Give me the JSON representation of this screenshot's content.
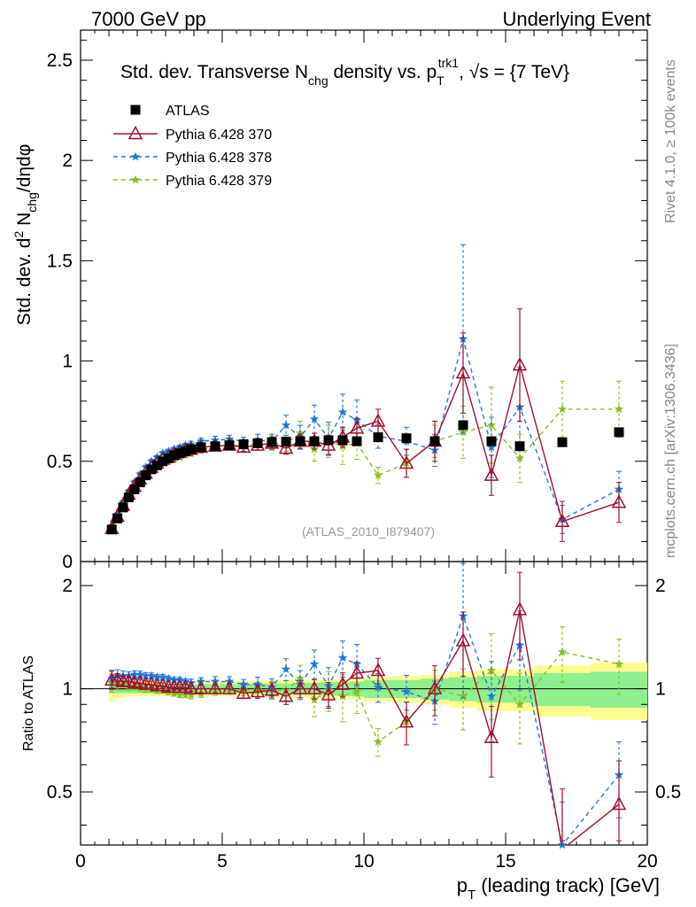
{
  "header": {
    "left": "7000 GeV pp",
    "right": "Underlying Event"
  },
  "side": {
    "rivet": "Rivet 4.1.0, ≥ 100k events",
    "mcplots": "mcplots.cern.ch [arXiv:1306.3436]"
  },
  "chart_data": {
    "type": "scatter",
    "title": "Std. dev. Transverse N_chg density vs. p_T^trk1, √s = {7 TeV}",
    "title_parts": {
      "a": "Std. dev. Transverse N",
      "a_sub": "chg",
      "b": " density vs. p",
      "b_sub": "T",
      "b_sup": "trk1",
      "c": ", √s = {7 TeV}"
    },
    "ylabel_parts": {
      "a": "Std. dev. d",
      "sup": "2",
      "b": " N",
      "sub": "chg",
      "c": "/dηdφ"
    },
    "ratio_ylabel": "Ratio to ATLAS",
    "xlabel_parts": {
      "a": "p",
      "sub": "T",
      "b": " (leading track) [GeV]"
    },
    "analysis_tag": "(ATLAS_2010_I879407)",
    "xlim": [
      0,
      20
    ],
    "ylim": [
      0,
      2.65
    ],
    "ratio_ylim": [
      0.35,
      2.35
    ],
    "xticks": [
      "0",
      "5",
      "10",
      "15",
      "20"
    ],
    "yticks": [
      "0",
      "0.5",
      "1",
      "1.5",
      "2",
      "2.5"
    ],
    "ratio_yticks": [
      "0.5",
      "1",
      "2"
    ],
    "x": [
      1.1,
      1.3,
      1.5,
      1.7,
      1.9,
      2.1,
      2.3,
      2.5,
      2.7,
      2.9,
      3.1,
      3.3,
      3.5,
      3.7,
      3.9,
      4.25,
      4.75,
      5.25,
      5.75,
      6.25,
      6.75,
      7.25,
      7.75,
      8.25,
      8.75,
      9.25,
      9.75,
      10.5,
      11.5,
      12.5,
      13.5,
      14.5,
      15.5,
      17,
      19
    ],
    "xerr": [
      0.1,
      0.1,
      0.1,
      0.1,
      0.1,
      0.1,
      0.1,
      0.1,
      0.1,
      0.1,
      0.1,
      0.1,
      0.1,
      0.1,
      0.1,
      0.25,
      0.25,
      0.25,
      0.25,
      0.25,
      0.25,
      0.25,
      0.25,
      0.25,
      0.25,
      0.25,
      0.25,
      0.5,
      0.5,
      0.5,
      0.5,
      0.5,
      0.5,
      1,
      1
    ],
    "band_stat": [
      0.03,
      0.03,
      0.03,
      0.03,
      0.03,
      0.03,
      0.03,
      0.03,
      0.03,
      0.03,
      0.03,
      0.03,
      0.03,
      0.03,
      0.03,
      0.03,
      0.03,
      0.03,
      0.03,
      0.035,
      0.035,
      0.035,
      0.04,
      0.04,
      0.045,
      0.045,
      0.05,
      0.06,
      0.06,
      0.07,
      0.08,
      0.09,
      0.09,
      0.11,
      0.12
    ],
    "band_total": [
      0.08,
      0.06,
      0.06,
      0.05,
      0.05,
      0.05,
      0.05,
      0.05,
      0.05,
      0.05,
      0.05,
      0.05,
      0.05,
      0.05,
      0.05,
      0.05,
      0.05,
      0.05,
      0.05,
      0.055,
      0.055,
      0.06,
      0.06,
      0.06,
      0.065,
      0.065,
      0.07,
      0.08,
      0.09,
      0.1,
      0.12,
      0.14,
      0.14,
      0.17,
      0.19
    ],
    "legend": {
      "placement": "top-left"
    },
    "series": [
      {
        "name": "ATLAS",
        "color": "#000000",
        "marker": "square",
        "values": [
          0.16,
          0.215,
          0.27,
          0.32,
          0.36,
          0.395,
          0.43,
          0.46,
          0.48,
          0.5,
          0.515,
          0.53,
          0.54,
          0.55,
          0.56,
          0.57,
          0.575,
          0.58,
          0.585,
          0.59,
          0.595,
          0.598,
          0.6,
          0.6,
          0.605,
          0.605,
          0.6,
          0.62,
          0.615,
          0.6,
          0.68,
          0.6,
          0.575,
          0.595,
          0.645
        ],
        "ratio": [
          1,
          1,
          1,
          1,
          1,
          1,
          1,
          1,
          1,
          1,
          1,
          1,
          1,
          1,
          1,
          1,
          1,
          1,
          1,
          1,
          1,
          1,
          1,
          1,
          1,
          1,
          1,
          1,
          1,
          1,
          1,
          1,
          1,
          1,
          1
        ]
      },
      {
        "name": "Pythia 6.428 370",
        "color": "#a01030",
        "marker": "triangle",
        "dashed": false,
        "values": [
          0.165,
          0.225,
          0.28,
          0.335,
          0.375,
          0.41,
          0.44,
          0.47,
          0.49,
          0.51,
          0.52,
          0.535,
          0.545,
          0.555,
          0.56,
          0.57,
          0.575,
          0.58,
          0.57,
          0.58,
          0.59,
          0.565,
          0.6,
          0.6,
          0.58,
          0.62,
          0.665,
          0.7,
          0.49,
          0.6,
          0.94,
          0.43,
          0.98,
          0.2,
          0.295
        ],
        "errors": [
          0.01,
          0.01,
          0.01,
          0.01,
          0.01,
          0.01,
          0.01,
          0.01,
          0.01,
          0.01,
          0.01,
          0.01,
          0.01,
          0.01,
          0.01,
          0.015,
          0.015,
          0.02,
          0.02,
          0.025,
          0.03,
          0.03,
          0.035,
          0.04,
          0.05,
          0.05,
          0.05,
          0.06,
          0.07,
          0.1,
          0.2,
          0.1,
          0.28,
          0.1,
          0.1
        ],
        "ratio": [
          1.06,
          1.06,
          1.05,
          1.05,
          1.04,
          1.04,
          1.03,
          1.03,
          1.02,
          1.02,
          1.01,
          1.01,
          1.01,
          1.01,
          1.0,
          1.0,
          1.0,
          1.0,
          0.97,
          0.98,
          0.99,
          0.95,
          1.0,
          1.0,
          0.96,
          1.03,
          1.11,
          1.13,
          0.8,
          1.0,
          1.38,
          0.72,
          1.7,
          0.34,
          0.46
        ]
      },
      {
        "name": "Pythia 6.428 378",
        "color": "#1e78d8",
        "marker": "star",
        "dashed": true,
        "values": [
          0.17,
          0.235,
          0.295,
          0.35,
          0.395,
          0.435,
          0.47,
          0.5,
          0.52,
          0.54,
          0.55,
          0.56,
          0.57,
          0.58,
          0.585,
          0.6,
          0.605,
          0.61,
          0.6,
          0.605,
          0.6,
          0.68,
          0.62,
          0.71,
          0.615,
          0.745,
          0.705,
          0.625,
          0.6,
          0.555,
          1.11,
          0.57,
          0.77,
          0.21,
          0.36
        ],
        "errors": [
          0.01,
          0.01,
          0.01,
          0.01,
          0.01,
          0.01,
          0.01,
          0.01,
          0.01,
          0.01,
          0.01,
          0.01,
          0.01,
          0.01,
          0.015,
          0.015,
          0.02,
          0.02,
          0.02,
          0.03,
          0.035,
          0.05,
          0.06,
          0.07,
          0.08,
          0.09,
          0.1,
          0.06,
          0.07,
          0.08,
          0.47,
          0.15,
          0.2,
          0.07,
          0.09
        ],
        "ratio": [
          1.07,
          1.09,
          1.09,
          1.09,
          1.1,
          1.1,
          1.09,
          1.09,
          1.08,
          1.08,
          1.07,
          1.06,
          1.06,
          1.05,
          1.04,
          1.05,
          1.05,
          1.05,
          1.03,
          1.03,
          1.01,
          1.14,
          1.03,
          1.18,
          1.02,
          1.23,
          1.18,
          1.01,
          0.98,
          0.92,
          1.63,
          0.95,
          1.34,
          0.35,
          0.56
        ]
      },
      {
        "name": "Pythia 6.428 379",
        "color": "#88c020",
        "marker": "star",
        "dashed": true,
        "values": [
          0.165,
          0.22,
          0.275,
          0.325,
          0.365,
          0.4,
          0.43,
          0.46,
          0.475,
          0.495,
          0.5,
          0.51,
          0.52,
          0.53,
          0.54,
          0.555,
          0.575,
          0.58,
          0.58,
          0.585,
          0.59,
          0.59,
          0.64,
          0.56,
          0.6,
          0.575,
          0.59,
          0.43,
          0.49,
          0.6,
          0.645,
          0.68,
          0.515,
          0.76,
          0.76
        ],
        "errors": [
          0.01,
          0.01,
          0.01,
          0.01,
          0.01,
          0.01,
          0.01,
          0.01,
          0.01,
          0.01,
          0.01,
          0.01,
          0.01,
          0.01,
          0.015,
          0.015,
          0.02,
          0.02,
          0.02,
          0.03,
          0.035,
          0.04,
          0.06,
          0.06,
          0.08,
          0.09,
          0.08,
          0.04,
          0.07,
          0.08,
          0.13,
          0.19,
          0.12,
          0.14,
          0.14
        ],
        "ratio": [
          1.04,
          1.04,
          1.03,
          1.02,
          1.02,
          1.01,
          1.0,
          1.0,
          0.99,
          0.99,
          0.98,
          0.97,
          0.96,
          0.96,
          0.96,
          0.97,
          0.99,
          1.0,
          0.99,
          0.99,
          0.99,
          0.99,
          1.07,
          0.93,
          0.99,
          0.95,
          0.98,
          0.7,
          0.8,
          1.0,
          0.95,
          1.13,
          0.9,
          1.28,
          1.18
        ]
      }
    ]
  }
}
